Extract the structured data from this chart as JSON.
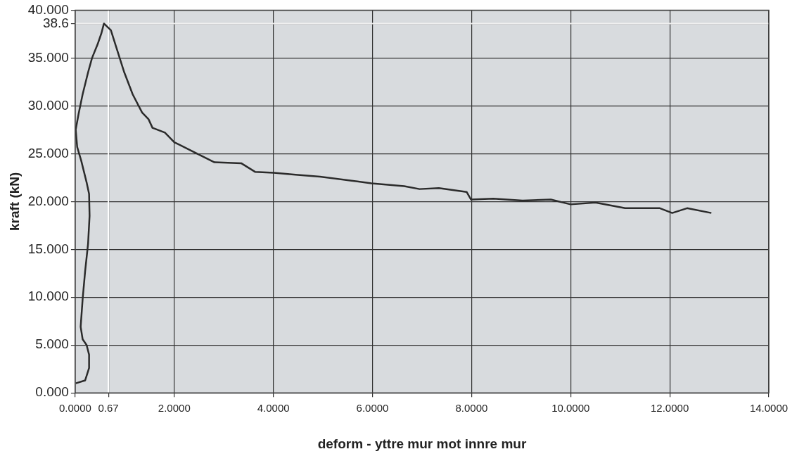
{
  "chart_data": {
    "type": "line",
    "xlabel": "deform - yttre mur mot innre mur",
    "ylabel": "kraft (kN)",
    "x": [
      0.01,
      0.2,
      0.28,
      0.28,
      0.23,
      0.15,
      0.11,
      0.15,
      0.2,
      0.26,
      0.29,
      0.28,
      0.23,
      0.12,
      0.04,
      0.01,
      0.07,
      0.15,
      0.26,
      0.34,
      0.45,
      0.53,
      0.58,
      0.66,
      0.72,
      0.83,
      0.99,
      1.16,
      1.35,
      1.48,
      1.56,
      1.81,
      2.0,
      2.42,
      2.81,
      3.35,
      3.63,
      4.01,
      4.45,
      4.94,
      5.55,
      5.98,
      6.64,
      6.95,
      7.34,
      7.9,
      7.99,
      8.44,
      9.03,
      9.6,
      10.0,
      10.5,
      11.1,
      11.8,
      12.05,
      12.35,
      12.84
    ],
    "series": [
      {
        "color": "#2b2b2b",
        "values": [
          1.0,
          1.3,
          2.6,
          4.0,
          5.0,
          5.6,
          6.9,
          9.8,
          12.7,
          15.6,
          18.5,
          20.8,
          22.0,
          24.3,
          25.7,
          27.5,
          29.2,
          31.2,
          33.5,
          35.0,
          36.4,
          37.6,
          38.6,
          38.2,
          37.9,
          36.1,
          33.5,
          31.2,
          29.3,
          28.6,
          27.7,
          27.2,
          26.2,
          25.1,
          24.1,
          24.0,
          23.1,
          23.0,
          22.8,
          22.6,
          22.2,
          21.9,
          21.6,
          21.3,
          21.4,
          21.0,
          20.2,
          20.3,
          20.1,
          20.2,
          19.7,
          19.9,
          19.3,
          19.3,
          18.8,
          19.3,
          18.8
        ]
      }
    ],
    "xlim": [
      0,
      14
    ],
    "xticks": [
      {
        "value": 0,
        "label": "0.0000"
      },
      {
        "value": 0.67,
        "label": "0.67"
      },
      {
        "value": 2,
        "label": "2.0000"
      },
      {
        "value": 4,
        "label": "4.0000"
      },
      {
        "value": 6,
        "label": "6.0000"
      },
      {
        "value": 8,
        "label": "8.0000"
      },
      {
        "value": 10,
        "label": "10.0000"
      },
      {
        "value": 12,
        "label": "12.0000"
      },
      {
        "value": 14,
        "label": "14.0000"
      }
    ],
    "ylim": [
      0,
      40
    ],
    "yticks": [
      {
        "value": 0,
        "label": "0.000"
      },
      {
        "value": 5,
        "label": "5.000"
      },
      {
        "value": 10,
        "label": "10.000"
      },
      {
        "value": 15,
        "label": "15.000"
      },
      {
        "value": 20,
        "label": "20.000"
      },
      {
        "value": 25,
        "label": "25.000"
      },
      {
        "value": 30,
        "label": "30.000"
      },
      {
        "value": 35,
        "label": "35.000"
      },
      {
        "value": 38.6,
        "label": "38.6"
      },
      {
        "value": 40,
        "label": "40.000"
      }
    ],
    "ref_lines": [
      {
        "axis": "x",
        "value": 0.67,
        "color": "#ffffff"
      },
      {
        "axis": "y",
        "value": 38.6,
        "color": "#f0f0f0"
      }
    ],
    "grid": true,
    "legend": false,
    "marker": "none",
    "line_style": "solid"
  }
}
